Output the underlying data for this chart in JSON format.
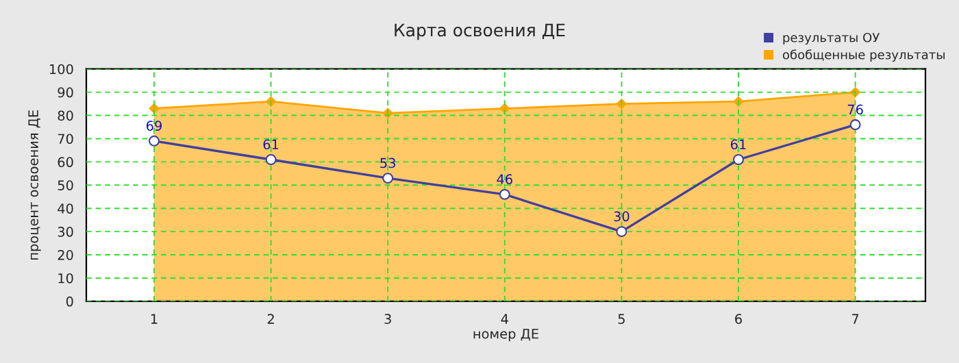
{
  "chart_data": {
    "type": "line",
    "title": "Карта освоения ДЕ",
    "xlabel": "номер ДЕ",
    "ylabel": "процент освоения ДЕ",
    "x": [
      1,
      2,
      3,
      4,
      5,
      6,
      7
    ],
    "xlim": [
      0.42,
      7.6
    ],
    "xticks": [
      1,
      2,
      3,
      4,
      5,
      6,
      7
    ],
    "ylim": [
      0,
      100
    ],
    "yticks": [
      0,
      10,
      20,
      30,
      40,
      50,
      60,
      70,
      80,
      90,
      100
    ],
    "series": [
      {
        "name": "результаты ОУ",
        "color": "#4040a0",
        "values": [
          69,
          61,
          53,
          46,
          30,
          61,
          76
        ],
        "marker": "circle",
        "data_labels": true
      },
      {
        "name": "обобщенные результаты",
        "type": "area",
        "color": "#ffa500",
        "values": [
          83,
          86,
          81,
          83,
          85,
          86,
          90
        ],
        "marker": "diamond"
      }
    ],
    "grid": true,
    "legend": "top right"
  }
}
